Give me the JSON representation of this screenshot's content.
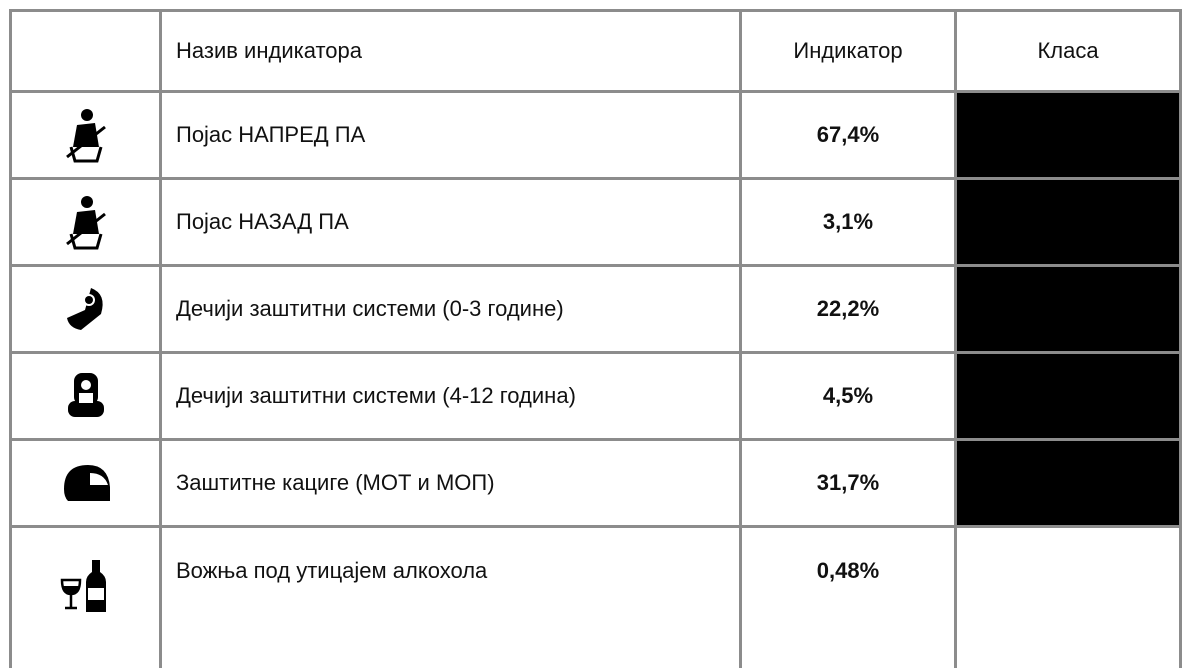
{
  "table": {
    "header": [
      "Назив индикатора",
      "Индикатор",
      "Класа"
    ],
    "rows": [
      {
        "name": "Појас НАПРЕД ПА",
        "value": "67,4%",
        "class_color": "#000000"
      },
      {
        "name": "Појас НАЗАД ПА",
        "value": "3,1%",
        "class_color": "#000000"
      },
      {
        "name": "Дечији заштитни системи (0-3 године)",
        "value": "22,2%",
        "class_color": "#000000"
      },
      {
        "name": "Дечији заштитни системи (4-12 година)",
        "value": "4,5%",
        "class_color": "#000000"
      },
      {
        "name": "Заштитне кациге (МОТ и МОП)",
        "value": "31,7%",
        "class_color": "#000000"
      },
      {
        "name": "Вожња под утицајем алкохола",
        "value": "0,48%",
        "class_color": "#ffffff"
      }
    ]
  }
}
